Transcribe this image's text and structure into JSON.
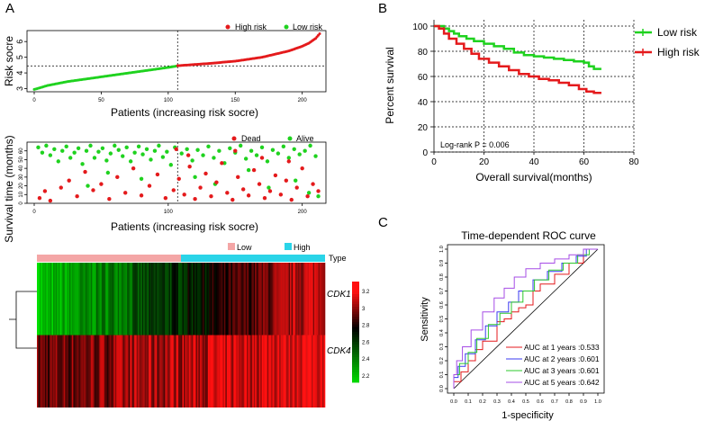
{
  "colors": {
    "high": "#e41a1c",
    "low": "#1fd21f",
    "dead": "#e41a1c",
    "alive": "#1fd21f",
    "heat_low": "#00e000",
    "heat_mid": "#000000",
    "heat_high": "#ff1010",
    "type_low": "#f4a6a6",
    "type_high": "#2ad4e8",
    "roc1": "#e41a1c",
    "roc2": "#3a3af0",
    "roc3": "#2ec82e",
    "roc5": "#a64ce6"
  },
  "panels": {
    "a": "A",
    "b": "B",
    "c": "C"
  },
  "chart_data": [
    {
      "id": "risk_score",
      "type": "scatter",
      "title": "",
      "xlabel": "Patients (increasing risk socre)",
      "ylabel": "Risk socre",
      "x_ticks": [
        0,
        50,
        100,
        150,
        200
      ],
      "y_ticks": [
        3,
        4,
        5,
        6
      ],
      "xlim": [
        0,
        215
      ],
      "ylim": [
        2.8,
        6.7
      ],
      "n_patients": 214,
      "cutoff_index": 107,
      "cutoff_value": 4.45,
      "series": [
        {
          "name": "High risk",
          "curve": [
            [
              107,
              4.46
            ],
            [
              130,
              4.6
            ],
            [
              150,
              4.75
            ],
            [
              170,
              5.0
            ],
            [
              190,
              5.4
            ],
            [
              200,
              5.7
            ],
            [
              205,
              5.9
            ],
            [
              210,
              6.2
            ],
            [
              214,
              6.6
            ]
          ]
        },
        {
          "name": "Low risk",
          "curve": [
            [
              0,
              2.95
            ],
            [
              3,
              3.02
            ],
            [
              10,
              3.2
            ],
            [
              25,
              3.45
            ],
            [
              50,
              3.75
            ],
            [
              75,
              4.05
            ],
            [
              100,
              4.35
            ],
            [
              107,
              4.45
            ]
          ]
        }
      ],
      "legend": [
        "High risk",
        "Low risk"
      ]
    },
    {
      "id": "survival_time",
      "type": "scatter",
      "xlabel": "Patients (increasing risk socre)",
      "ylabel": "Survival time (months)",
      "x_ticks": [
        0,
        100,
        200
      ],
      "y_ticks": [
        0,
        10,
        20,
        30,
        40,
        50,
        60
      ],
      "xlim": [
        0,
        215
      ],
      "ylim": [
        0,
        70
      ],
      "cutoff_index": 107,
      "legend": [
        "Dead",
        "Alive"
      ],
      "points": {
        "alive": [
          [
            3,
            64
          ],
          [
            6,
            58
          ],
          [
            9,
            66
          ],
          [
            12,
            55
          ],
          [
            15,
            62
          ],
          [
            18,
            48
          ],
          [
            21,
            60
          ],
          [
            24,
            65
          ],
          [
            27,
            52
          ],
          [
            30,
            58
          ],
          [
            33,
            63
          ],
          [
            36,
            45
          ],
          [
            39,
            60
          ],
          [
            42,
            66
          ],
          [
            45,
            52
          ],
          [
            48,
            59
          ],
          [
            51,
            63
          ],
          [
            54,
            49
          ],
          [
            57,
            57
          ],
          [
            60,
            66
          ],
          [
            63,
            61
          ],
          [
            66,
            54
          ],
          [
            69,
            64
          ],
          [
            72,
            48
          ],
          [
            75,
            58
          ],
          [
            78,
            65
          ],
          [
            81,
            56
          ],
          [
            84,
            62
          ],
          [
            87,
            50
          ],
          [
            90,
            60
          ],
          [
            93,
            66
          ],
          [
            96,
            53
          ],
          [
            99,
            59
          ],
          [
            102,
            44
          ],
          [
            105,
            64
          ],
          [
            110,
            57
          ],
          [
            114,
            62
          ],
          [
            118,
            49
          ],
          [
            122,
            61
          ],
          [
            126,
            55
          ],
          [
            130,
            65
          ],
          [
            134,
            52
          ],
          [
            138,
            60
          ],
          [
            142,
            46
          ],
          [
            146,
            63
          ],
          [
            150,
            58
          ],
          [
            154,
            66
          ],
          [
            158,
            51
          ],
          [
            162,
            60
          ],
          [
            166,
            55
          ],
          [
            170,
            64
          ],
          [
            174,
            48
          ],
          [
            178,
            61
          ],
          [
            182,
            57
          ],
          [
            186,
            65
          ],
          [
            190,
            52
          ],
          [
            194,
            62
          ],
          [
            198,
            56
          ],
          [
            202,
            60
          ],
          [
            206,
            66
          ],
          [
            210,
            54
          ],
          [
            40,
            20
          ],
          [
            55,
            35
          ],
          [
            80,
            28
          ],
          [
            120,
            30
          ],
          [
            135,
            22
          ],
          [
            160,
            38
          ],
          [
            175,
            18
          ],
          [
            195,
            26
          ],
          [
            205,
            12
          ],
          [
            212,
            8
          ]
        ],
        "dead": [
          [
            4,
            6
          ],
          [
            8,
            14
          ],
          [
            12,
            3
          ],
          [
            20,
            18
          ],
          [
            26,
            26
          ],
          [
            32,
            8
          ],
          [
            38,
            36
          ],
          [
            44,
            15
          ],
          [
            50,
            22
          ],
          [
            56,
            5
          ],
          [
            62,
            30
          ],
          [
            68,
            12
          ],
          [
            74,
            40
          ],
          [
            80,
            9
          ],
          [
            86,
            20
          ],
          [
            92,
            33
          ],
          [
            98,
            6
          ],
          [
            104,
            15
          ],
          [
            108,
            28
          ],
          [
            112,
            10
          ],
          [
            116,
            42
          ],
          [
            120,
            5
          ],
          [
            124,
            18
          ],
          [
            128,
            34
          ],
          [
            132,
            8
          ],
          [
            136,
            24
          ],
          [
            140,
            46
          ],
          [
            144,
            12
          ],
          [
            148,
            4
          ],
          [
            152,
            30
          ],
          [
            156,
            16
          ],
          [
            160,
            9
          ],
          [
            164,
            38
          ],
          [
            168,
            22
          ],
          [
            172,
            6
          ],
          [
            176,
            14
          ],
          [
            180,
            32
          ],
          [
            184,
            10
          ],
          [
            188,
            26
          ],
          [
            192,
            4
          ],
          [
            196,
            18
          ],
          [
            200,
            40
          ],
          [
            204,
            8
          ],
          [
            208,
            22
          ],
          [
            212,
            14
          ],
          [
            106,
            62
          ],
          [
            115,
            55
          ],
          [
            150,
            60
          ],
          [
            170,
            52
          ],
          [
            190,
            48
          ]
        ]
      }
    },
    {
      "id": "heatmap",
      "type": "heatmap",
      "rows": [
        "CDK1",
        "CDK4"
      ],
      "type_groups": [
        "Low",
        "High"
      ],
      "type_label": "Type",
      "n_columns": 214,
      "low_count": 107,
      "color_scale": [
        2.2,
        3.2
      ],
      "color_ticks": [
        "3.2",
        "3",
        "2.8",
        "2.6",
        "2.4",
        "2.2"
      ]
    },
    {
      "id": "km",
      "type": "line",
      "xlabel": "Overall survival(months)",
      "ylabel": "Percent survival",
      "x_ticks": [
        0,
        20,
        40,
        60,
        80
      ],
      "y_ticks": [
        0,
        20,
        40,
        60,
        80,
        100
      ],
      "xlim": [
        0,
        80
      ],
      "ylim": [
        0,
        105
      ],
      "annotation": "Log-rank P = 0.006",
      "series": [
        {
          "name": "Low risk",
          "points": [
            [
              0,
              100
            ],
            [
              2,
              100
            ],
            [
              4,
              98
            ],
            [
              6,
              96
            ],
            [
              8,
              94
            ],
            [
              10,
              92
            ],
            [
              13,
              90
            ],
            [
              16,
              88
            ],
            [
              20,
              86
            ],
            [
              24,
              84
            ],
            [
              28,
              82
            ],
            [
              32,
              79
            ],
            [
              36,
              77
            ],
            [
              40,
              76
            ],
            [
              44,
              75
            ],
            [
              48,
              74
            ],
            [
              52,
              73
            ],
            [
              56,
              72
            ],
            [
              60,
              71
            ],
            [
              62,
              68
            ],
            [
              64,
              66
            ],
            [
              67,
              66
            ]
          ]
        },
        {
          "name": "High risk",
          "points": [
            [
              0,
              100
            ],
            [
              2,
              98
            ],
            [
              4,
              94
            ],
            [
              6,
              90
            ],
            [
              9,
              86
            ],
            [
              12,
              82
            ],
            [
              15,
              78
            ],
            [
              18,
              74
            ],
            [
              22,
              71
            ],
            [
              26,
              68
            ],
            [
              30,
              65
            ],
            [
              34,
              62
            ],
            [
              38,
              60
            ],
            [
              42,
              58
            ],
            [
              46,
              57
            ],
            [
              50,
              55
            ],
            [
              54,
              53
            ],
            [
              58,
              50
            ],
            [
              61,
              48
            ],
            [
              64,
              47
            ],
            [
              67,
              47
            ]
          ]
        }
      ]
    },
    {
      "id": "roc",
      "type": "line",
      "title": "Time-dependent ROC curve",
      "xlabel": "1-specificity",
      "ylabel": "Sensitivity",
      "x_ticks": [
        "0.0",
        "0.1",
        "0.2",
        "0.3",
        "0.4",
        "0.5",
        "0.6",
        "0.7",
        "0.8",
        "0.9",
        "1.0"
      ],
      "y_ticks": [
        "0.0",
        "0.1",
        "0.2",
        "0.3",
        "0.4",
        "0.5",
        "0.6",
        "0.7",
        "0.8",
        "0.9",
        "1.0"
      ],
      "series": [
        {
          "name": "AUC at 1 years :0.533",
          "points": [
            [
              0,
              0
            ],
            [
              0.05,
              0.05
            ],
            [
              0.1,
              0.12
            ],
            [
              0.15,
              0.2
            ],
            [
              0.2,
              0.28
            ],
            [
              0.3,
              0.34
            ],
            [
              0.35,
              0.48
            ],
            [
              0.4,
              0.5
            ],
            [
              0.45,
              0.55
            ],
            [
              0.5,
              0.58
            ],
            [
              0.55,
              0.6
            ],
            [
              0.6,
              0.7
            ],
            [
              0.7,
              0.75
            ],
            [
              0.8,
              0.82
            ],
            [
              0.9,
              0.9
            ],
            [
              1,
              1
            ]
          ]
        },
        {
          "name": "AUC at 2 years :0.601",
          "points": [
            [
              0,
              0
            ],
            [
              0.03,
              0.08
            ],
            [
              0.08,
              0.16
            ],
            [
              0.15,
              0.25
            ],
            [
              0.22,
              0.35
            ],
            [
              0.3,
              0.45
            ],
            [
              0.38,
              0.55
            ],
            [
              0.45,
              0.62
            ],
            [
              0.55,
              0.7
            ],
            [
              0.65,
              0.78
            ],
            [
              0.75,
              0.84
            ],
            [
              0.85,
              0.9
            ],
            [
              0.92,
              0.95
            ],
            [
              1,
              1
            ]
          ]
        },
        {
          "name": "AUC at 3 years :0.601",
          "points": [
            [
              0,
              0
            ],
            [
              0.04,
              0.1
            ],
            [
              0.1,
              0.18
            ],
            [
              0.16,
              0.26
            ],
            [
              0.24,
              0.36
            ],
            [
              0.32,
              0.46
            ],
            [
              0.4,
              0.54
            ],
            [
              0.48,
              0.62
            ],
            [
              0.56,
              0.7
            ],
            [
              0.66,
              0.78
            ],
            [
              0.76,
              0.85
            ],
            [
              0.86,
              0.9
            ],
            [
              0.94,
              0.96
            ],
            [
              1,
              1
            ]
          ]
        },
        {
          "name": "AUC at 5 years :0.642",
          "points": [
            [
              0,
              0
            ],
            [
              0.02,
              0.1
            ],
            [
              0.06,
              0.2
            ],
            [
              0.12,
              0.3
            ],
            [
              0.2,
              0.42
            ],
            [
              0.28,
              0.55
            ],
            [
              0.35,
              0.65
            ],
            [
              0.42,
              0.72
            ],
            [
              0.5,
              0.8
            ],
            [
              0.6,
              0.86
            ],
            [
              0.7,
              0.9
            ],
            [
              0.8,
              0.93
            ],
            [
              0.9,
              0.96
            ],
            [
              1,
              1
            ]
          ]
        }
      ]
    }
  ]
}
